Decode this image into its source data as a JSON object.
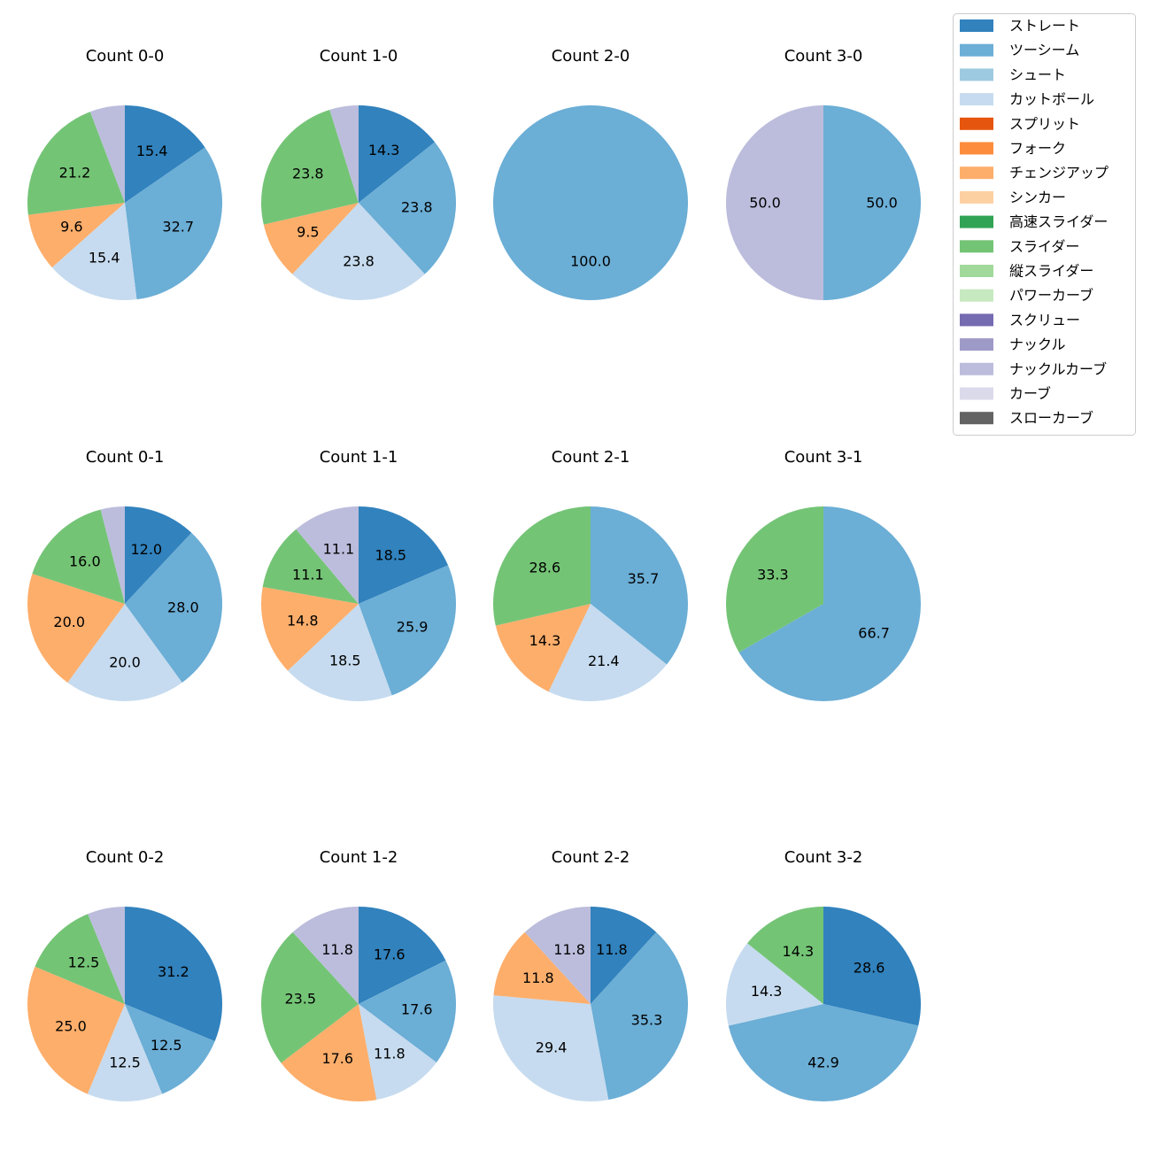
{
  "legend": {
    "items": [
      {
        "label": "ストレート",
        "color": "#3182bd"
      },
      {
        "label": "ツーシーム",
        "color": "#6baed6"
      },
      {
        "label": "シュート",
        "color": "#9ecae1"
      },
      {
        "label": "カットボール",
        "color": "#c6dbef"
      },
      {
        "label": "スプリット",
        "color": "#e6550d"
      },
      {
        "label": "フォーク",
        "color": "#fd8d3c"
      },
      {
        "label": "チェンジアップ",
        "color": "#fdae6b"
      },
      {
        "label": "シンカー",
        "color": "#fdd0a2"
      },
      {
        "label": "高速スライダー",
        "color": "#31a354"
      },
      {
        "label": "スライダー",
        "color": "#74c476"
      },
      {
        "label": "縦スライダー",
        "color": "#a1d99b"
      },
      {
        "label": "パワーカーブ",
        "color": "#c7e9c0"
      },
      {
        "label": "スクリュー",
        "color": "#756bb1"
      },
      {
        "label": "ナックル",
        "color": "#9e9ac8"
      },
      {
        "label": "ナックルカーブ",
        "color": "#bcbddc"
      },
      {
        "label": "カーブ",
        "color": "#dadaeb"
      },
      {
        "label": "スローカーブ",
        "color": "#636363"
      }
    ]
  },
  "chart_data": [
    {
      "type": "pie",
      "title": "Count 0-0",
      "slices": [
        {
          "category": "ストレート",
          "value": 15.4,
          "label": "15.4"
        },
        {
          "category": "ツーシーム",
          "value": 32.7,
          "label": "32.7"
        },
        {
          "category": "カットボール",
          "value": 15.4,
          "label": "15.4"
        },
        {
          "category": "チェンジアップ",
          "value": 9.6,
          "label": "9.6"
        },
        {
          "category": "スライダー",
          "value": 21.2,
          "label": "21.2"
        },
        {
          "category": "ナックルカーブ",
          "value": 5.8,
          "label": ""
        }
      ]
    },
    {
      "type": "pie",
      "title": "Count 1-0",
      "slices": [
        {
          "category": "ストレート",
          "value": 14.3,
          "label": "14.3"
        },
        {
          "category": "ツーシーム",
          "value": 23.8,
          "label": "23.8"
        },
        {
          "category": "カットボール",
          "value": 23.8,
          "label": "23.8"
        },
        {
          "category": "チェンジアップ",
          "value": 9.5,
          "label": "9.5"
        },
        {
          "category": "スライダー",
          "value": 23.8,
          "label": "23.8"
        },
        {
          "category": "ナックルカーブ",
          "value": 4.8,
          "label": ""
        }
      ]
    },
    {
      "type": "pie",
      "title": "Count 2-0",
      "slices": [
        {
          "category": "ツーシーム",
          "value": 100.0,
          "label": "100.0"
        }
      ]
    },
    {
      "type": "pie",
      "title": "Count 3-0",
      "slices": [
        {
          "category": "ツーシーム",
          "value": 50.0,
          "label": "50.0"
        },
        {
          "category": "ナックルカーブ",
          "value": 50.0,
          "label": "50.0"
        }
      ]
    },
    {
      "type": "pie",
      "title": "Count 0-1",
      "slices": [
        {
          "category": "ストレート",
          "value": 12.0,
          "label": "12.0"
        },
        {
          "category": "ツーシーム",
          "value": 28.0,
          "label": "28.0"
        },
        {
          "category": "カットボール",
          "value": 20.0,
          "label": "20.0"
        },
        {
          "category": "チェンジアップ",
          "value": 20.0,
          "label": "20.0"
        },
        {
          "category": "スライダー",
          "value": 16.0,
          "label": "16.0"
        },
        {
          "category": "ナックルカーブ",
          "value": 4.0,
          "label": ""
        }
      ]
    },
    {
      "type": "pie",
      "title": "Count 1-1",
      "slices": [
        {
          "category": "ストレート",
          "value": 18.5,
          "label": "18.5"
        },
        {
          "category": "ツーシーム",
          "value": 25.9,
          "label": "25.9"
        },
        {
          "category": "カットボール",
          "value": 18.5,
          "label": "18.5"
        },
        {
          "category": "チェンジアップ",
          "value": 14.8,
          "label": "14.8"
        },
        {
          "category": "スライダー",
          "value": 11.1,
          "label": "11.1"
        },
        {
          "category": "ナックルカーブ",
          "value": 11.1,
          "label": "11.1"
        }
      ]
    },
    {
      "type": "pie",
      "title": "Count 2-1",
      "slices": [
        {
          "category": "ツーシーム",
          "value": 35.7,
          "label": "35.7"
        },
        {
          "category": "カットボール",
          "value": 21.4,
          "label": "21.4"
        },
        {
          "category": "チェンジアップ",
          "value": 14.3,
          "label": "14.3"
        },
        {
          "category": "スライダー",
          "value": 28.6,
          "label": "28.6"
        }
      ]
    },
    {
      "type": "pie",
      "title": "Count 3-1",
      "slices": [
        {
          "category": "ツーシーム",
          "value": 66.7,
          "label": "66.7"
        },
        {
          "category": "スライダー",
          "value": 33.3,
          "label": "33.3"
        }
      ]
    },
    {
      "type": "pie",
      "title": "Count 0-2",
      "slices": [
        {
          "category": "ストレート",
          "value": 31.2,
          "label": "31.2"
        },
        {
          "category": "ツーシーム",
          "value": 12.5,
          "label": "12.5"
        },
        {
          "category": "カットボール",
          "value": 12.5,
          "label": "12.5"
        },
        {
          "category": "チェンジアップ",
          "value": 25.0,
          "label": "25.0"
        },
        {
          "category": "スライダー",
          "value": 12.5,
          "label": "12.5"
        },
        {
          "category": "ナックルカーブ",
          "value": 6.2,
          "label": ""
        }
      ]
    },
    {
      "type": "pie",
      "title": "Count 1-2",
      "slices": [
        {
          "category": "ストレート",
          "value": 17.6,
          "label": "17.6"
        },
        {
          "category": "ツーシーム",
          "value": 17.6,
          "label": "17.6"
        },
        {
          "category": "カットボール",
          "value": 11.8,
          "label": "11.8"
        },
        {
          "category": "チェンジアップ",
          "value": 17.6,
          "label": "17.6"
        },
        {
          "category": "スライダー",
          "value": 23.5,
          "label": "23.5"
        },
        {
          "category": "ナックルカーブ",
          "value": 11.8,
          "label": "11.8"
        }
      ]
    },
    {
      "type": "pie",
      "title": "Count 2-2",
      "slices": [
        {
          "category": "ストレート",
          "value": 11.8,
          "label": "11.8"
        },
        {
          "category": "ツーシーム",
          "value": 35.3,
          "label": "35.3"
        },
        {
          "category": "カットボール",
          "value": 29.4,
          "label": "29.4"
        },
        {
          "category": "チェンジアップ",
          "value": 11.8,
          "label": "11.8"
        },
        {
          "category": "ナックルカーブ",
          "value": 11.8,
          "label": "11.8"
        }
      ]
    },
    {
      "type": "pie",
      "title": "Count 3-2",
      "slices": [
        {
          "category": "ストレート",
          "value": 28.6,
          "label": "28.6"
        },
        {
          "category": "ツーシーム",
          "value": 42.9,
          "label": "42.9"
        },
        {
          "category": "カットボール",
          "value": 14.3,
          "label": "14.3"
        },
        {
          "category": "スライダー",
          "value": 14.3,
          "label": "14.3"
        }
      ]
    }
  ]
}
